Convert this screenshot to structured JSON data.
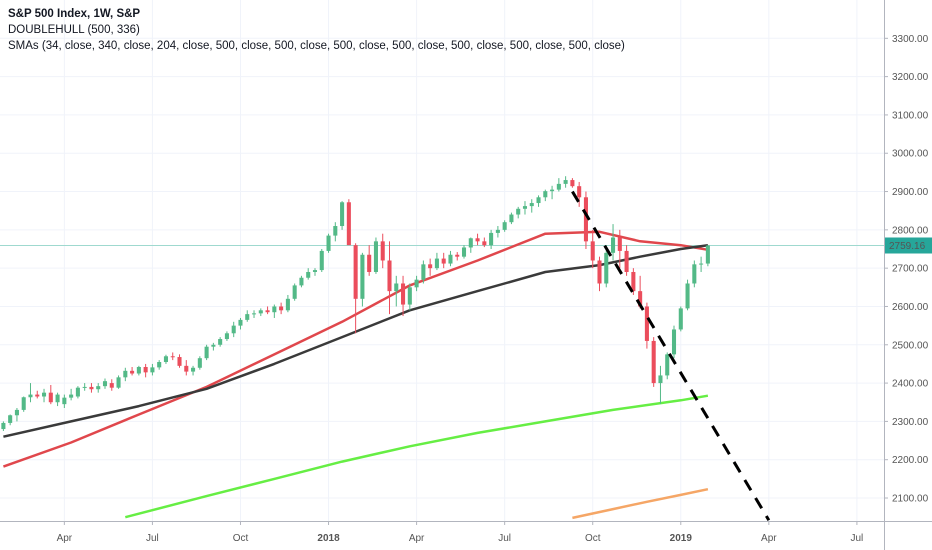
{
  "legend": {
    "title": "S&P 500 Index, 1W, S&P",
    "line2": "DOUBLEHULL (500, 336)",
    "line3": "SMAs (34, close, 340, close, 204, close, 500, close, 500, close, 500, close, 500, close, 500, close, 500, close, 500, close)"
  },
  "last_price_label": "2759.16",
  "colors": {
    "up": "#53b987",
    "down": "#eb4d5c",
    "sma_red": "#e0474c",
    "sma_black": "#3a3a3a",
    "sma_green": "#66ee44",
    "sma_orange": "#f5a666",
    "last_price_line": "#9fd9cf",
    "last_price_bg": "#26a69a",
    "trendline": "#000000"
  },
  "chart_data": {
    "type": "candlestick",
    "yaxis": {
      "ticks": [
        2100,
        2200,
        2300,
        2400,
        2500,
        2600,
        2700,
        2800,
        2900,
        3000,
        3100,
        3200,
        3300
      ],
      "tick_labels": [
        "2100.00",
        "2200.00",
        "2300.00",
        "2400.00",
        "2500.00",
        "2600.00",
        "2700.00",
        "2800.00",
        "2900.00",
        "3000.00",
        "3100.00",
        "3200.00",
        "3300.00"
      ],
      "range": [
        2040,
        3400
      ]
    },
    "xaxis": {
      "ticks": [
        {
          "label": "Apr",
          "bold": false,
          "week": 9
        },
        {
          "label": "Jul",
          "bold": false,
          "week": 22
        },
        {
          "label": "Oct",
          "bold": false,
          "week": 35
        },
        {
          "label": "2018",
          "bold": true,
          "week": 48
        },
        {
          "label": "Apr",
          "bold": false,
          "week": 61
        },
        {
          "label": "Jul",
          "bold": false,
          "week": 74
        },
        {
          "label": "Oct",
          "bold": false,
          "week": 87
        },
        {
          "label": "2019",
          "bold": true,
          "week": 100
        },
        {
          "label": "Apr",
          "bold": false,
          "week": 113
        },
        {
          "label": "Jul",
          "bold": false,
          "week": 126
        }
      ],
      "range": [
        -0.5,
        130
      ]
    },
    "candles": [
      [
        2280,
        2300,
        2275,
        2296
      ],
      [
        2296,
        2318,
        2290,
        2316
      ],
      [
        2316,
        2335,
        2300,
        2330
      ],
      [
        2330,
        2365,
        2325,
        2363
      ],
      [
        2363,
        2400,
        2350,
        2370
      ],
      [
        2370,
        2380,
        2360,
        2365
      ],
      [
        2365,
        2385,
        2350,
        2375
      ],
      [
        2375,
        2395,
        2345,
        2350
      ],
      [
        2350,
        2375,
        2340,
        2370
      ],
      [
        2345,
        2370,
        2335,
        2362
      ],
      [
        2362,
        2385,
        2355,
        2370
      ],
      [
        2365,
        2392,
        2360,
        2388
      ],
      [
        2388,
        2400,
        2380,
        2390
      ],
      [
        2390,
        2400,
        2375,
        2384
      ],
      [
        2384,
        2400,
        2375,
        2392
      ],
      [
        2392,
        2412,
        2385,
        2405
      ],
      [
        2400,
        2410,
        2380,
        2388
      ],
      [
        2388,
        2420,
        2385,
        2415
      ],
      [
        2415,
        2440,
        2405,
        2432
      ],
      [
        2432,
        2442,
        2420,
        2425
      ],
      [
        2425,
        2445,
        2420,
        2442
      ],
      [
        2442,
        2450,
        2415,
        2428
      ],
      [
        2428,
        2450,
        2420,
        2441
      ],
      [
        2441,
        2460,
        2435,
        2455
      ],
      [
        2455,
        2474,
        2450,
        2470
      ],
      [
        2470,
        2480,
        2460,
        2468
      ],
      [
        2468,
        2475,
        2440,
        2445
      ],
      [
        2445,
        2460,
        2420,
        2430
      ],
      [
        2430,
        2445,
        2420,
        2440
      ],
      [
        2440,
        2470,
        2435,
        2465
      ],
      [
        2465,
        2500,
        2460,
        2495
      ],
      [
        2495,
        2505,
        2485,
        2500
      ],
      [
        2500,
        2520,
        2495,
        2515
      ],
      [
        2515,
        2535,
        2510,
        2530
      ],
      [
        2530,
        2560,
        2520,
        2550
      ],
      [
        2550,
        2570,
        2540,
        2565
      ],
      [
        2565,
        2590,
        2560,
        2580
      ],
      [
        2580,
        2590,
        2570,
        2582
      ],
      [
        2582,
        2595,
        2575,
        2590
      ],
      [
        2590,
        2600,
        2580,
        2585
      ],
      [
        2585,
        2605,
        2570,
        2600
      ],
      [
        2600,
        2610,
        2580,
        2590
      ],
      [
        2590,
        2630,
        2585,
        2620
      ],
      [
        2620,
        2660,
        2615,
        2655
      ],
      [
        2655,
        2680,
        2650,
        2675
      ],
      [
        2675,
        2700,
        2670,
        2690
      ],
      [
        2690,
        2700,
        2680,
        2695
      ],
      [
        2695,
        2750,
        2690,
        2745
      ],
      [
        2745,
        2790,
        2740,
        2785
      ],
      [
        2785,
        2820,
        2770,
        2810
      ],
      [
        2810,
        2875,
        2800,
        2872
      ],
      [
        2872,
        2880,
        2770,
        2760
      ],
      [
        2760,
        2765,
        2530,
        2620
      ],
      [
        2620,
        2740,
        2600,
        2735
      ],
      [
        2735,
        2760,
        2680,
        2690
      ],
      [
        2690,
        2780,
        2685,
        2770
      ],
      [
        2770,
        2790,
        2700,
        2720
      ],
      [
        2720,
        2770,
        2580,
        2640
      ],
      [
        2640,
        2680,
        2600,
        2660
      ],
      [
        2660,
        2680,
        2575,
        2605
      ],
      [
        2605,
        2660,
        2590,
        2650
      ],
      [
        2650,
        2680,
        2640,
        2670
      ],
      [
        2670,
        2720,
        2660,
        2710
      ],
      [
        2710,
        2725,
        2680,
        2700
      ],
      [
        2700,
        2740,
        2695,
        2725
      ],
      [
        2725,
        2740,
        2700,
        2712
      ],
      [
        2712,
        2745,
        2705,
        2735
      ],
      [
        2735,
        2742,
        2720,
        2730
      ],
      [
        2730,
        2760,
        2725,
        2754
      ],
      [
        2754,
        2780,
        2740,
        2778
      ],
      [
        2778,
        2790,
        2760,
        2770
      ],
      [
        2770,
        2780,
        2755,
        2760
      ],
      [
        2760,
        2800,
        2750,
        2792
      ],
      [
        2792,
        2810,
        2780,
        2800
      ],
      [
        2800,
        2825,
        2795,
        2820
      ],
      [
        2820,
        2845,
        2815,
        2840
      ],
      [
        2840,
        2860,
        2830,
        2855
      ],
      [
        2855,
        2875,
        2840,
        2862
      ],
      [
        2862,
        2880,
        2845,
        2870
      ],
      [
        2870,
        2890,
        2860,
        2885
      ],
      [
        2885,
        2905,
        2875,
        2901
      ],
      [
        2901,
        2915,
        2880,
        2905
      ],
      [
        2905,
        2935,
        2900,
        2920
      ],
      [
        2920,
        2940,
        2910,
        2930
      ],
      [
        2930,
        2935,
        2910,
        2914
      ],
      [
        2914,
        2925,
        2860,
        2885
      ],
      [
        2885,
        2900,
        2750,
        2770
      ],
      [
        2770,
        2800,
        2700,
        2720
      ],
      [
        2720,
        2730,
        2640,
        2660
      ],
      [
        2660,
        2760,
        2650,
        2740
      ],
      [
        2740,
        2815,
        2720,
        2780
      ],
      [
        2780,
        2800,
        2700,
        2745
      ],
      [
        2745,
        2760,
        2680,
        2690
      ],
      [
        2690,
        2700,
        2630,
        2640
      ],
      [
        2640,
        2680,
        2595,
        2600
      ],
      [
        2600,
        2610,
        2490,
        2510
      ],
      [
        2510,
        2520,
        2390,
        2400
      ],
      [
        2400,
        2445,
        2346,
        2420
      ],
      [
        2420,
        2480,
        2410,
        2475
      ],
      [
        2475,
        2550,
        2465,
        2540
      ],
      [
        2540,
        2600,
        2535,
        2595
      ],
      [
        2595,
        2670,
        2590,
        2660
      ],
      [
        2660,
        2720,
        2650,
        2710
      ],
      [
        2710,
        2730,
        2690,
        2712
      ],
      [
        2712,
        2760,
        2705,
        2759.16
      ]
    ],
    "series": [
      {
        "color": "red",
        "x": [
          0,
          10,
          20,
          30,
          40,
          50,
          60,
          70,
          80,
          88,
          94,
          100,
          104
        ],
        "values": [
          2182,
          2245,
          2318,
          2390,
          2475,
          2560,
          2655,
          2720,
          2790,
          2795,
          2770,
          2760,
          2748
        ]
      },
      {
        "color": "black",
        "x": [
          0,
          10,
          20,
          30,
          40,
          50,
          60,
          70,
          80,
          88,
          94,
          100,
          104
        ],
        "values": [
          2260,
          2300,
          2340,
          2385,
          2450,
          2520,
          2590,
          2640,
          2690,
          2708,
          2730,
          2750,
          2760
        ]
      },
      {
        "color": "green",
        "x": [
          18,
          30,
          40,
          50,
          60,
          70,
          80,
          90,
          100,
          104
        ],
        "values": [
          2050,
          2105,
          2150,
          2195,
          2235,
          2270,
          2300,
          2330,
          2355,
          2367
        ]
      },
      {
        "color": "orange",
        "x": [
          84,
          90,
          95,
          100,
          104
        ],
        "values": [
          2048,
          2071,
          2090,
          2108,
          2123
        ]
      }
    ],
    "trendline": {
      "x": [
        84,
        113
      ],
      "values": [
        2900,
        2042
      ],
      "style": "dashed"
    }
  }
}
